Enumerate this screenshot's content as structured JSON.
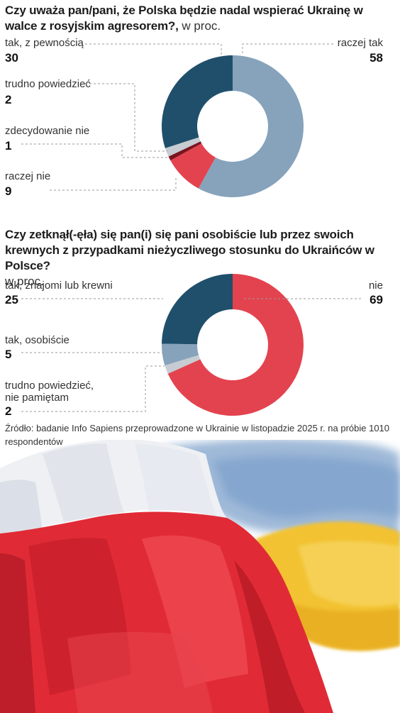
{
  "chart_data": [
    {
      "type": "pie",
      "style": "donut",
      "title": "Czy uważa pan/pani, że Polska będzie nadal wspierać Ukrainę w walce z rosyjskim agresorem?,",
      "unit": "w proc.",
      "slices": [
        {
          "label": "raczej tak",
          "value": 58,
          "color": "#86a3bb"
        },
        {
          "label": "raczej nie",
          "value": 9,
          "color": "#e3434f"
        },
        {
          "label": "zdecydowanie nie",
          "value": 1,
          "color": "#7a1520"
        },
        {
          "label": "trudno powiedzieć",
          "value": 2,
          "color": "#c6ccd1"
        },
        {
          "label": "tak, z pewnością",
          "value": 30,
          "color": "#1f4f6b"
        }
      ]
    },
    {
      "type": "pie",
      "style": "donut",
      "title": "Czy zetknął(-ęła) się pan(i) się pani osobiście lub przez swoich krewnych z przypadkami nieżyczliwego stosunku do Ukraińców w Polsce?",
      "unit": "w proc.",
      "slices": [
        {
          "label": "nie",
          "value": 69,
          "color": "#e3434f"
        },
        {
          "label": "trudno powiedzieć,\nnie pamiętam",
          "value": 2,
          "color": "#c6ccd1"
        },
        {
          "label": "tak, osobiście",
          "value": 5,
          "color": "#86a3bb"
        },
        {
          "label": "tak, znajomi lub krewni",
          "value": 25,
          "color": "#1f4f6b"
        }
      ]
    }
  ],
  "source": "Źródło: badanie Info Sapiens przeprowadzone w Ukrainie w listopadzie 2025 r. na próbie 1010 respondentów"
}
